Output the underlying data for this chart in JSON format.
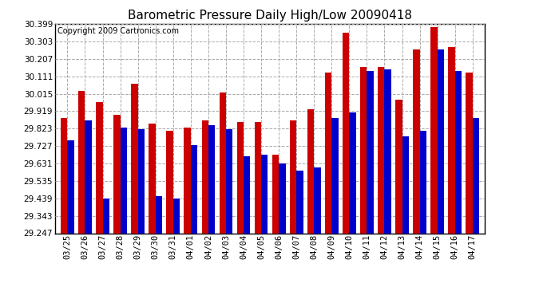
{
  "title": "Barometric Pressure Daily High/Low 20090418",
  "copyright": "Copyright 2009 Cartronics.com",
  "dates": [
    "03/25",
    "03/26",
    "03/27",
    "03/28",
    "03/29",
    "03/30",
    "03/31",
    "04/01",
    "04/02",
    "04/03",
    "04/04",
    "04/05",
    "04/06",
    "04/07",
    "04/08",
    "04/09",
    "04/10",
    "04/11",
    "04/12",
    "04/13",
    "04/14",
    "04/15",
    "04/16",
    "04/17"
  ],
  "highs": [
    29.88,
    30.03,
    29.97,
    29.9,
    30.07,
    29.85,
    29.81,
    29.83,
    29.87,
    30.02,
    29.86,
    29.86,
    29.68,
    29.87,
    29.93,
    30.13,
    30.35,
    30.16,
    30.16,
    29.98,
    30.26,
    30.38,
    30.27,
    30.13
  ],
  "lows": [
    29.76,
    29.87,
    29.44,
    29.83,
    29.82,
    29.45,
    29.44,
    29.73,
    29.84,
    29.82,
    29.67,
    29.68,
    29.63,
    29.59,
    29.61,
    29.88,
    29.91,
    30.14,
    30.15,
    29.78,
    29.81,
    30.26,
    30.14,
    29.88
  ],
  "high_color": "#cc0000",
  "low_color": "#0000cc",
  "bg_color": "#ffffff",
  "plot_bg_color": "#ffffff",
  "grid_color": "#aaaaaa",
  "ylim_min": 29.247,
  "ylim_max": 30.399,
  "yticks": [
    29.247,
    29.343,
    29.439,
    29.535,
    29.631,
    29.727,
    29.823,
    29.919,
    30.015,
    30.111,
    30.207,
    30.303,
    30.399
  ],
  "bar_width": 0.38,
  "title_fontsize": 11,
  "tick_fontsize": 7.5,
  "copyright_fontsize": 7
}
